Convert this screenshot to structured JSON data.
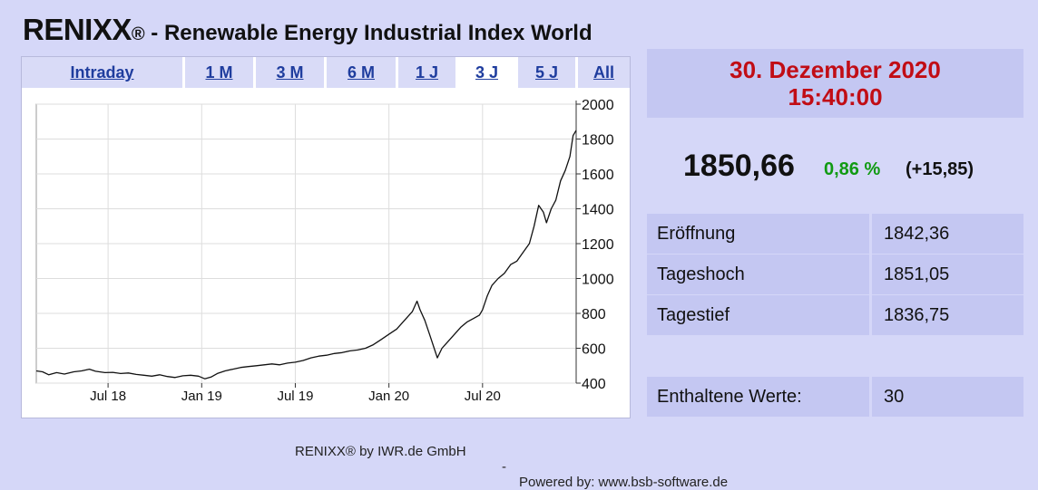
{
  "header": {
    "brand": "RENIXX",
    "reg_mark": "®",
    "subtitle": " - Renewable Energy Industrial Index World"
  },
  "tabs": [
    {
      "label": "Intraday",
      "active": false
    },
    {
      "label": "1 M",
      "active": false
    },
    {
      "label": "3 M",
      "active": false
    },
    {
      "label": "6 M",
      "active": false
    },
    {
      "label": "1 J",
      "active": false
    },
    {
      "label": "3 J",
      "active": true
    },
    {
      "label": "5 J",
      "active": false
    },
    {
      "label": "All",
      "active": false
    }
  ],
  "quote": {
    "date": "30. Dezember  2020",
    "time": "15:40:00",
    "price": "1850,66",
    "change_pct": "0,86 %",
    "change_abs": "(+15,85)",
    "rows": [
      {
        "label": "Eröffnung",
        "value": "1842,36"
      },
      {
        "label": "Tageshoch",
        "value": "1851,05"
      },
      {
        "label": "Tagestief",
        "value": "1836,75"
      }
    ],
    "constituents_label": "Enthaltene Werte:",
    "constituents_value": "30"
  },
  "footer": {
    "credit": "RENIXX® by IWR.de GmbH",
    "separator": "-",
    "powered": "Powered by: www.bsb-software.de"
  },
  "colors": {
    "background": "#d5d7f8",
    "cell": "#c4c7f2",
    "date_red": "#c10d15",
    "gain_green": "#109a12",
    "link_blue": "#1f3d9e"
  },
  "chart_data": {
    "type": "line",
    "ylim": [
      400,
      2000
    ],
    "yticks": [
      2000,
      1800,
      1600,
      1400,
      1200,
      1000,
      800,
      600,
      400
    ],
    "xtick_labels": [
      "Jul 18",
      "Jan 19",
      "Jul 19",
      "Jan 20",
      "Jul 20"
    ],
    "xtick_months": [
      6,
      12,
      18,
      24,
      30
    ],
    "x_start_month": 1.4,
    "x_end_month": 36.0,
    "grid": true,
    "series": [
      {
        "points": [
          [
            1.4,
            470
          ],
          [
            1.8,
            465
          ],
          [
            2.2,
            448
          ],
          [
            2.7,
            460
          ],
          [
            3.2,
            452
          ],
          [
            3.8,
            465
          ],
          [
            4.3,
            470
          ],
          [
            4.8,
            480
          ],
          [
            5.2,
            468
          ],
          [
            5.8,
            460
          ],
          [
            6.3,
            462
          ],
          [
            6.8,
            455
          ],
          [
            7.3,
            458
          ],
          [
            7.8,
            450
          ],
          [
            8.3,
            445
          ],
          [
            8.8,
            440
          ],
          [
            9.3,
            448
          ],
          [
            9.8,
            438
          ],
          [
            10.3,
            432
          ],
          [
            10.8,
            442
          ],
          [
            11.3,
            445
          ],
          [
            11.8,
            440
          ],
          [
            12.2,
            425
          ],
          [
            12.6,
            435
          ],
          [
            13.0,
            455
          ],
          [
            13.5,
            470
          ],
          [
            14.0,
            480
          ],
          [
            14.5,
            490
          ],
          [
            15.0,
            495
          ],
          [
            15.5,
            500
          ],
          [
            16.0,
            505
          ],
          [
            16.5,
            510
          ],
          [
            17.0,
            505
          ],
          [
            17.5,
            515
          ],
          [
            18.0,
            520
          ],
          [
            18.5,
            530
          ],
          [
            19.0,
            545
          ],
          [
            19.5,
            555
          ],
          [
            20.0,
            560
          ],
          [
            20.5,
            570
          ],
          [
            21.0,
            575
          ],
          [
            21.5,
            585
          ],
          [
            22.0,
            590
          ],
          [
            22.5,
            600
          ],
          [
            23.0,
            620
          ],
          [
            23.5,
            650
          ],
          [
            24.0,
            680
          ],
          [
            24.5,
            710
          ],
          [
            25.0,
            760
          ],
          [
            25.5,
            810
          ],
          [
            25.8,
            870
          ],
          [
            26.0,
            820
          ],
          [
            26.3,
            760
          ],
          [
            26.6,
            680
          ],
          [
            26.9,
            600
          ],
          [
            27.1,
            545
          ],
          [
            27.4,
            600
          ],
          [
            27.8,
            640
          ],
          [
            28.2,
            680
          ],
          [
            28.6,
            720
          ],
          [
            29.0,
            750
          ],
          [
            29.4,
            770
          ],
          [
            29.8,
            790
          ],
          [
            30.0,
            820
          ],
          [
            30.3,
            900
          ],
          [
            30.6,
            960
          ],
          [
            31.0,
            1000
          ],
          [
            31.4,
            1030
          ],
          [
            31.8,
            1080
          ],
          [
            32.2,
            1100
          ],
          [
            32.6,
            1150
          ],
          [
            33.0,
            1200
          ],
          [
            33.3,
            1300
          ],
          [
            33.6,
            1420
          ],
          [
            33.9,
            1380
          ],
          [
            34.1,
            1320
          ],
          [
            34.4,
            1400
          ],
          [
            34.7,
            1450
          ],
          [
            35.0,
            1560
          ],
          [
            35.3,
            1620
          ],
          [
            35.6,
            1700
          ],
          [
            35.8,
            1820
          ],
          [
            36.0,
            1850
          ]
        ]
      }
    ]
  }
}
